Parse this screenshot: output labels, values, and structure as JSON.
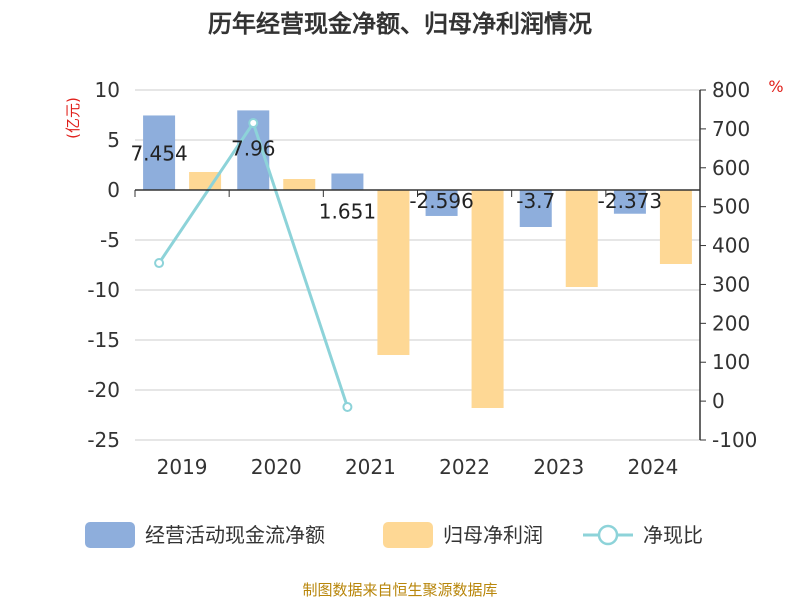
{
  "chart_data": {
    "type": "bar",
    "title": "历年经营现金净额、归母净利润情况",
    "categories": [
      "2019",
      "2020",
      "2021",
      "2022",
      "2023",
      "2024"
    ],
    "series": [
      {
        "name": "经营活动现金流净额",
        "type": "bar",
        "axis": "left",
        "color": "#8eaedc",
        "values": [
          7.454,
          7.96,
          1.651,
          -2.596,
          -3.7,
          -2.373
        ],
        "labels": [
          "7.454",
          "7.96",
          "1.651",
          "-2.596",
          "-3.7",
          "-2.373"
        ]
      },
      {
        "name": "归母净利润",
        "type": "bar",
        "axis": "left",
        "color": "#fed895",
        "values": [
          1.8,
          1.1,
          -16.5,
          -21.8,
          -9.7,
          -7.4
        ]
      },
      {
        "name": "净现比",
        "type": "line",
        "axis": "right",
        "color": "#8dd3d9",
        "values": [
          355,
          715,
          -15,
          null,
          null,
          null
        ]
      }
    ],
    "left_axis": {
      "unit": "(亿元)",
      "min": -25,
      "max": 10,
      "ticks": [
        "10",
        "5",
        "0",
        "-5",
        "-10",
        "-15",
        "-20",
        "-25"
      ]
    },
    "right_axis": {
      "unit": "%",
      "min": -100,
      "max": 800,
      "ticks": [
        "800",
        "700",
        "600",
        "500",
        "400",
        "300",
        "200",
        "100",
        "0",
        "-100"
      ]
    },
    "grid": true,
    "legend_position": "bottom",
    "source": "制图数据来自恒生聚源数据库"
  }
}
